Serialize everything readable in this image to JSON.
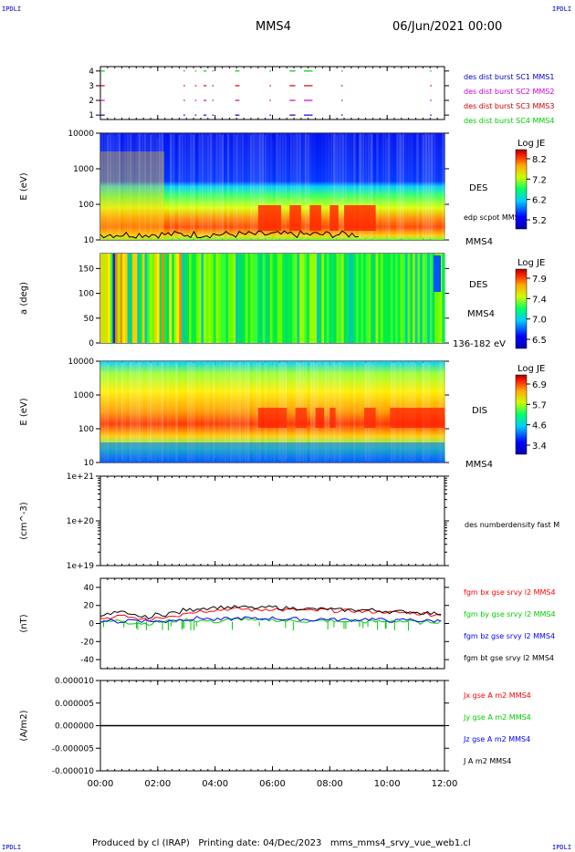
{
  "corners": {
    "tl": "IPDLI",
    "tr": "IPDLI",
    "bl": "IPDLI",
    "br": "IPDLI"
  },
  "header": {
    "spacecraft": "MMS4",
    "date": "06/Jun/2021 00:00"
  },
  "footer": "Produced by cl (IRAP)   Printing date: 04/Dec/2023   mms_mms4_srvy_vue_web1.cl",
  "time_axis": [
    "00:00",
    "02:00",
    "04:00",
    "06:00",
    "08:00",
    "10:00",
    "12:00"
  ],
  "colors": {
    "red": "#ff0000",
    "green": "#00cc00",
    "blue": "#0000ff",
    "black": "#000000",
    "magenta": "#cc00cc",
    "darkred": "#cc0000"
  },
  "chart_data": [
    {
      "type": "scatter",
      "panel": "burst",
      "yticks": [
        "1",
        "2",
        "3",
        "4"
      ],
      "ylim": [
        0.7,
        4.3
      ],
      "legend": [
        {
          "label": "des dist burst SC1 MMS1",
          "color": "#0000cc"
        },
        {
          "label": "des dist burst SC2 MMS2",
          "color": "#cc00cc"
        },
        {
          "label": "des dist burst SC3 MMS3",
          "color": "#cc0000"
        },
        {
          "label": "des dist burst SC4 MMS4",
          "color": "#00cc00"
        }
      ],
      "segments_hours": [
        [
          0.0,
          0.15
        ],
        [
          2.9,
          2.95
        ],
        [
          3.3,
          3.35
        ],
        [
          3.6,
          3.7
        ],
        [
          3.9,
          3.95
        ],
        [
          4.7,
          4.85
        ],
        [
          5.9,
          5.95
        ],
        [
          6.6,
          6.8
        ],
        [
          7.1,
          7.4
        ],
        [
          8.4,
          8.45
        ],
        [
          11.5,
          11.55
        ]
      ]
    },
    {
      "type": "heatmap",
      "panel": "des-energy",
      "ylabel": "E (eV)",
      "yticks": [
        "10",
        "100",
        "1000",
        "10000"
      ],
      "label": "DES",
      "label2": "MMS4",
      "overlay": "edp scpot MMS4",
      "colorbar": {
        "title": "Log JE",
        "ticks": [
          "8.2",
          "7.2",
          "6.2",
          "5.2"
        ]
      }
    },
    {
      "type": "heatmap",
      "panel": "des-pitch",
      "ylabel": "a (deg)",
      "yticks": [
        "0",
        "50",
        "100",
        "150"
      ],
      "label": "DES",
      "label2": "MMS4",
      "label3": "136-182 eV",
      "colorbar": {
        "title": "Log JE",
        "ticks": [
          "7.9",
          "7.4",
          "7.0",
          "6.5"
        ]
      }
    },
    {
      "type": "heatmap",
      "panel": "dis-energy",
      "ylabel": "E (eV)",
      "yticks": [
        "10",
        "100",
        "1000",
        "10000"
      ],
      "label": "DIS",
      "label2": "MMS4",
      "colorbar": {
        "title": "Log JE",
        "ticks": [
          "6.9",
          "5.7",
          "4.6",
          "3.4"
        ]
      }
    },
    {
      "type": "line",
      "panel": "density",
      "ylabel": "(cm^-3)",
      "yticks": [
        "1e+19",
        "1e+20",
        "1e+21"
      ],
      "legend": [
        {
          "label": "des numberdensity fast M",
          "color": "#000000"
        }
      ]
    },
    {
      "type": "line",
      "panel": "fgm",
      "ylabel": "(nT)",
      "yticks": [
        "-40",
        "-20",
        "0",
        "20",
        "40"
      ],
      "ylim": [
        -50,
        50
      ],
      "legend": [
        {
          "label": "fgm bx gse srvy l2 MMS4",
          "color": "#ff0000"
        },
        {
          "label": "fgm by gse srvy l2 MMS4",
          "color": "#00cc00"
        },
        {
          "label": "fgm bz gse srvy l2 MMS4",
          "color": "#0000ff"
        },
        {
          "label": "fgm bt gse srvy l2 MMS4",
          "color": "#000000"
        }
      ],
      "series": [
        {
          "color": "#ff0000",
          "values": [
            5,
            8,
            6,
            4,
            7,
            9,
            12,
            14,
            15,
            16,
            16,
            15,
            16,
            15,
            15,
            14,
            15,
            14,
            14,
            13,
            13,
            12,
            12,
            11,
            10
          ]
        },
        {
          "color": "#00cc00",
          "values": [
            2,
            3,
            1,
            0,
            2,
            3,
            4,
            3,
            2,
            4,
            5,
            3,
            4,
            3,
            3,
            2,
            3,
            2,
            3,
            2,
            2,
            3,
            2,
            1,
            2
          ]
        },
        {
          "color": "#0000ff",
          "values": [
            3,
            2,
            4,
            3,
            2,
            4,
            5,
            6,
            4,
            5,
            6,
            5,
            6,
            5,
            5,
            4,
            5,
            4,
            4,
            5,
            4,
            3,
            4,
            3,
            3
          ]
        },
        {
          "color": "#000000",
          "values": [
            10,
            12,
            9,
            7,
            10,
            12,
            15,
            17,
            18,
            18,
            18,
            17,
            18,
            17,
            17,
            16,
            16,
            15,
            15,
            15,
            14,
            13,
            13,
            12,
            11
          ]
        }
      ]
    },
    {
      "type": "line",
      "panel": "current",
      "ylabel": "(A/m2)",
      "yticks": [
        "-0.000010",
        "-0.000005",
        "0.000000",
        "0.000005",
        "0.000010"
      ],
      "ylim": [
        -1e-05,
        1e-05
      ],
      "legend": [
        {
          "label": "Jx gse A m2 MMS4",
          "color": "#ff0000"
        },
        {
          "label": "Jy gse A m2 MMS4",
          "color": "#00cc00"
        },
        {
          "label": "Jz gse A m2 MMS4",
          "color": "#0000ff"
        },
        {
          "label": "J A m2 MMS4",
          "color": "#000000"
        }
      ]
    }
  ]
}
